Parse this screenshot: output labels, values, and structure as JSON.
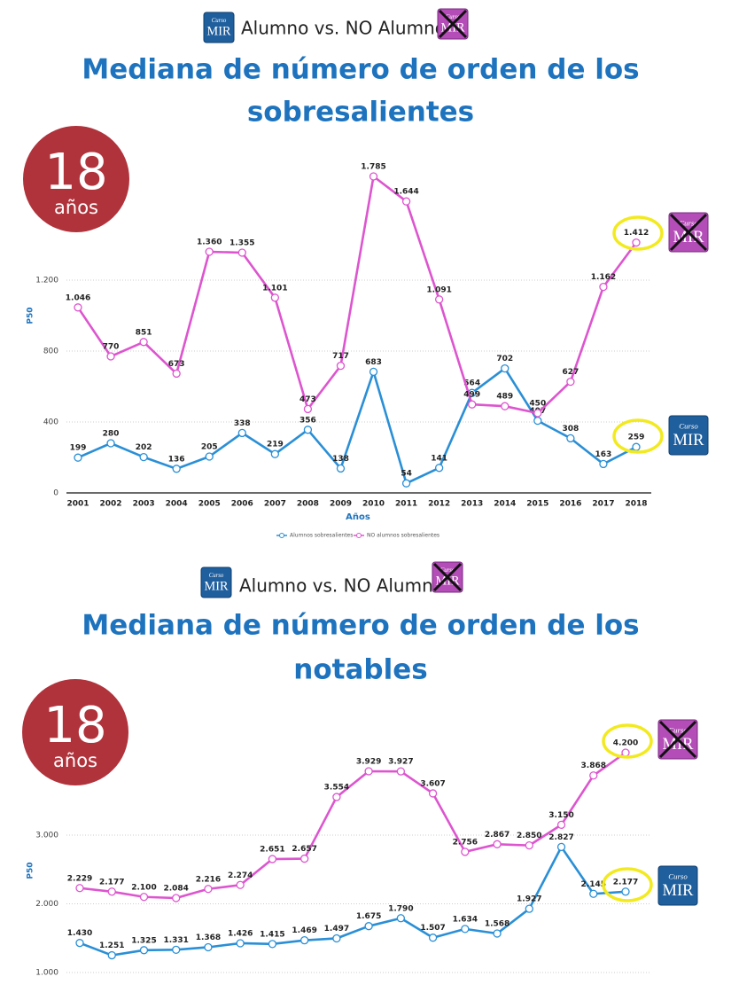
{
  "chart_data": [
    {
      "type": "line",
      "header": "Alumno vs. NO Alumno",
      "title": [
        "Mediana de número de orden de los",
        "sobresalientes"
      ],
      "badge_value": 18,
      "badge_unit": "años",
      "logo_text": [
        "Curso",
        "MIR"
      ],
      "xlabel": "Años",
      "ylabel": "P50",
      "categories": [
        "2001",
        "2002",
        "2003",
        "2004",
        "2005",
        "2006",
        "2007",
        "2008",
        "2009",
        "2010",
        "2011",
        "2012",
        "2013",
        "2014",
        "2015",
        "2016",
        "2017",
        "2018"
      ],
      "series": [
        {
          "name": "Alumnos sobresalientes",
          "color": "#2a8fd6",
          "values": [
            199,
            280,
            202,
            136,
            205,
            338,
            219,
            356,
            138,
            683,
            54,
            141,
            564,
            702,
            407,
            308,
            163,
            259
          ],
          "value_labels": [
            "199",
            "280",
            "202",
            "136",
            "205",
            "338",
            "219",
            "356",
            "138",
            "683",
            "54",
            "141",
            "564",
            "702",
            "407",
            "308",
            "163",
            "259"
          ]
        },
        {
          "name": "NO alumnos sobresalientes",
          "color": "#dd55cf",
          "values": [
            1046,
            770,
            851,
            673,
            1360,
            1355,
            1101,
            473,
            717,
            1785,
            1644,
            1091,
            499,
            489,
            450,
            627,
            1162,
            1412
          ],
          "value_labels": [
            "1.046",
            "770",
            "851",
            "673",
            "1.360",
            "1.355",
            "1.101",
            "473",
            "717",
            "1.785",
            "1.644",
            "1.091",
            "499",
            "489",
            "450",
            "627",
            "1.162",
            "1.412"
          ]
        }
      ],
      "ylim": [
        0,
        2000
      ],
      "yticks": [
        0,
        400,
        800,
        {
          "value": 1200,
          "label": "1.200"
        }
      ],
      "grid": true,
      "legend": "bottom"
    },
    {
      "type": "line",
      "header": "Alumno vs. NO Alumno",
      "title": [
        "Mediana de número de orden de los",
        "notables"
      ],
      "badge_value": 18,
      "badge_unit": "años",
      "logo_text": [
        "Curso",
        "MIR"
      ],
      "ylabel": "P50",
      "categories": [
        null,
        null,
        null,
        null,
        null,
        null,
        null,
        null,
        null,
        null,
        null,
        null,
        null,
        null,
        null,
        null,
        null,
        null
      ],
      "series": [
        {
          "name": null,
          "color": "#2a8fd6",
          "values": [
            1430,
            1251,
            1325,
            1331,
            1368,
            1426,
            1415,
            1469,
            1497,
            1675,
            1790,
            1507,
            1634,
            1568,
            1927,
            2827,
            2145,
            2177
          ],
          "value_labels": [
            "1.430",
            "1.251",
            "1.325",
            "1.331",
            "1.368",
            "1.426",
            "1.415",
            "1.469",
            "1.497",
            "1.675",
            "1.790",
            "1.507",
            "1.634",
            "1.568",
            "1.927",
            "2.827",
            "2.145",
            "2.177"
          ]
        },
        {
          "name": null,
          "color": "#dd55cf",
          "values": [
            2229,
            2177,
            2100,
            2084,
            2216,
            2274,
            2651,
            2657,
            3554,
            3929,
            3927,
            3607,
            2756,
            2867,
            2850,
            3150,
            3868,
            4200
          ],
          "value_labels": [
            "2.229",
            "2.177",
            "2.100",
            "2.084",
            "2.216",
            "2.274",
            "2.651",
            "2.657",
            "3.554",
            "3.929",
            "3.927",
            "3.607",
            "2.756",
            "2.867",
            "2.850",
            "3.150",
            "3.868",
            "4.200"
          ]
        }
      ],
      "ylim": [
        1000,
        5000
      ],
      "yticks": [
        {
          "value": 1000,
          "label": "1.000"
        },
        {
          "value": 2000,
          "label": "2.000"
        },
        {
          "value": 3000,
          "label": "3.000"
        }
      ],
      "grid": true
    }
  ]
}
